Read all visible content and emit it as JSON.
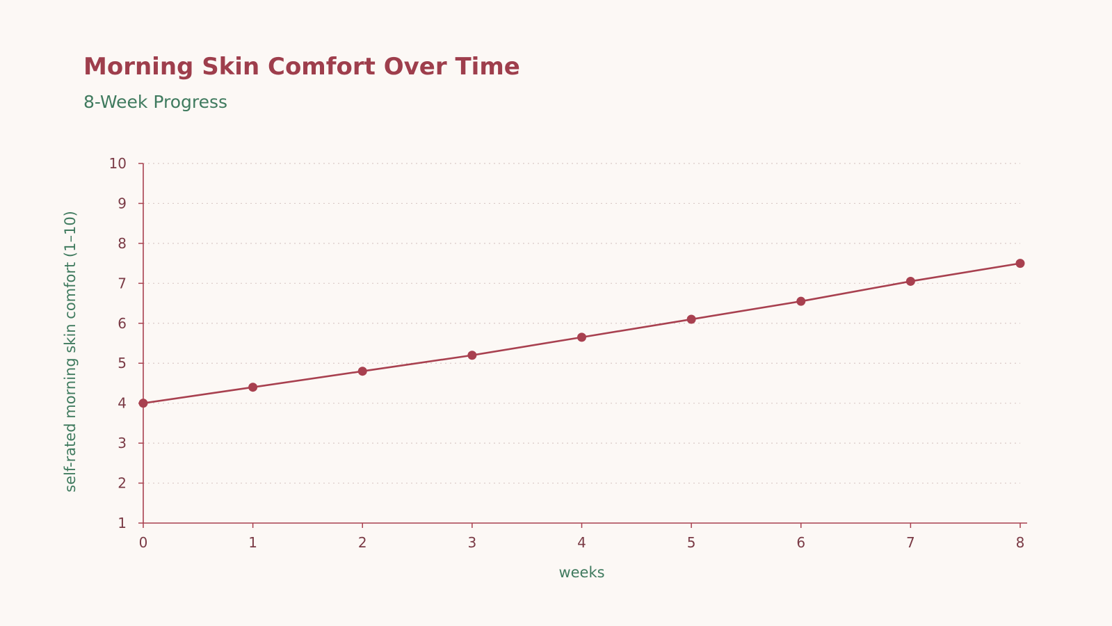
{
  "chart_data": {
    "type": "line",
    "title": "Morning Skin Comfort Over Time",
    "subtitle": "8-Week Progress",
    "xlabel": "weeks",
    "ylabel": "self-rated morning skin comfort (1–10)",
    "x": [
      0,
      1,
      2,
      3,
      4,
      5,
      6,
      7,
      8
    ],
    "series": [
      {
        "values": [
          4.0,
          4.4,
          4.8,
          5.2,
          5.65,
          6.1,
          6.55,
          7.05,
          7.5
        ]
      }
    ],
    "xlim": [
      0,
      8
    ],
    "ylim": [
      1,
      10
    ],
    "xticks": [
      "0",
      "1",
      "2",
      "3",
      "4",
      "5",
      "6",
      "7",
      "8"
    ],
    "yticks": [
      "1",
      "2",
      "3",
      "4",
      "5",
      "6",
      "7",
      "8",
      "9",
      "10"
    ],
    "grid": "horizontal-dotted",
    "colors": {
      "line": "#a8404f",
      "marker": "#a8404f",
      "axis": "#a8404f",
      "grid": "#d9c9c6",
      "title": "#9e3e4c",
      "subtitle": "#3f7a5e",
      "axis_title": "#3f7a5e",
      "tick_label": "#7a3a45"
    }
  }
}
